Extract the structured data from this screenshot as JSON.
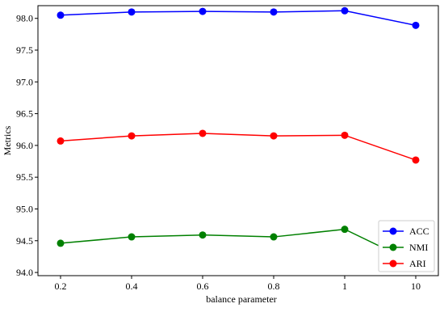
{
  "chart_data": {
    "type": "line",
    "title": "",
    "xlabel": "balance parameter",
    "ylabel": "Metrics",
    "categories": [
      "0.2",
      "0.4",
      "0.6",
      "0.8",
      "1",
      "10"
    ],
    "ylim": [
      93.95,
      98.2
    ],
    "yticks": [
      "94.0",
      "94.5",
      "95.0",
      "95.5",
      "96.0",
      "96.5",
      "97.0",
      "97.5",
      "98.0"
    ],
    "grid": false,
    "legend_position": "bottom-right",
    "series": [
      {
        "name": "ACC",
        "color": "#0000ff",
        "values": [
          98.05,
          98.1,
          98.11,
          98.1,
          98.12,
          97.89
        ]
      },
      {
        "name": "NMI",
        "color": "#008000",
        "values": [
          94.46,
          94.56,
          94.59,
          94.56,
          94.68,
          94.14
        ]
      },
      {
        "name": "ARI",
        "color": "#ff0000",
        "values": [
          96.07,
          96.15,
          96.19,
          96.15,
          96.16,
          95.77
        ]
      }
    ]
  }
}
